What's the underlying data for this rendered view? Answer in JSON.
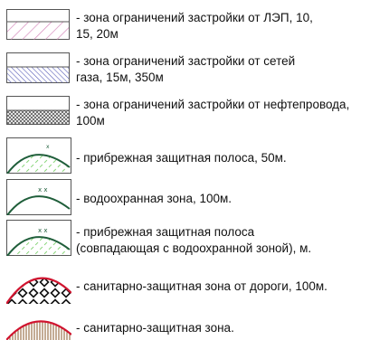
{
  "legend": {
    "items": [
      {
        "symbol": "diagonal-hatch-pink-icon",
        "label": "- зона ограничений застройки от ЛЭП, 10,\n15, 20м"
      },
      {
        "symbol": "diagonal-hatch-blue-icon",
        "label": "- зона ограничений застройки от сетей\nгаза, 15м, 350м"
      },
      {
        "symbol": "crosshatch-gray-icon",
        "label": "- зона ограничений застройки от нефтепровода,\n100м"
      },
      {
        "symbol": "coastal-strip-dashed-arc-icon",
        "label": "- прибрежная защитная полоса, 50м."
      },
      {
        "symbol": "water-protection-arc-icon",
        "label": "- водоохранная зона, 100м."
      },
      {
        "symbol": "coastal-strip-combined-arc-icon",
        "label": "- прибрежная защитная полоса\n(совпадающая с водоохранной зоной), м."
      },
      {
        "symbol": "road-sanitary-zone-diamonds-icon",
        "label": "- санитарно-защитная зона от дороги, 100м."
      },
      {
        "symbol": "sanitary-zone-stripes-icon",
        "label": "- санитарно-защитная зона."
      }
    ],
    "colors": {
      "outline": "#555555",
      "pink_hatch": "#d68bbd",
      "blue_hatch": "#5a5fb8",
      "dark_green": "#1f5e3a",
      "light_green": "#7bd16b",
      "red": "#d0142f",
      "brown_stripe": "#8a5a2b"
    }
  }
}
